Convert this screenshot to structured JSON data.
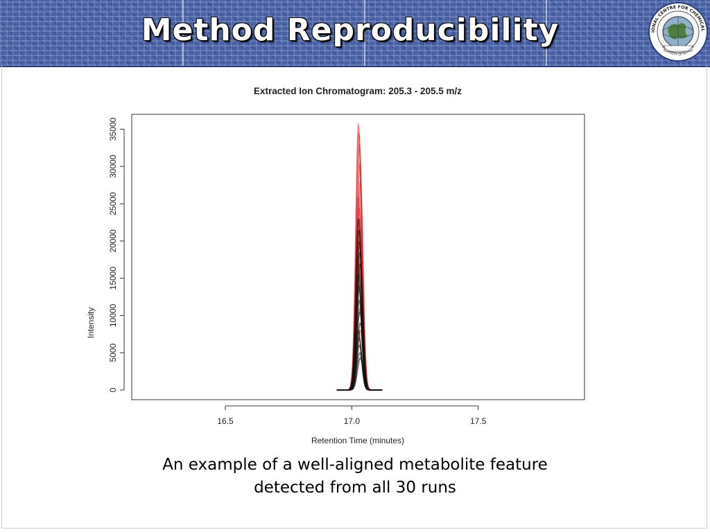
{
  "slide": {
    "title": "Method Reproducibility",
    "caption_line1": "An example of a well-aligned metabolite feature",
    "caption_line2": "detected from all 30 runs",
    "logo": {
      "icon": "globe-seal-icon",
      "text_top": "INTERNATIONAL CENTRE FOR CHEMICAL SCIENCES",
      "text_bottom": "UNIVERSITY OF KARACHI"
    }
  },
  "colors": {
    "header": "#4a63a8",
    "red_trace": "#e31b1b",
    "black_trace": "#111111"
  },
  "chart_data": {
    "type": "line",
    "title": "Extracted Ion Chromatogram: 205.3 - 205.5 m/z",
    "xlabel": "Retention Time (minutes)",
    "ylabel": "Intensity",
    "xlim": [
      16.13,
      17.92
    ],
    "ylim": [
      -1300,
      37000
    ],
    "xticks": [
      16.5,
      17.0,
      17.5
    ],
    "xtick_labels": [
      "16.5",
      "17.0",
      "17.5"
    ],
    "yticks": [
      0,
      5000,
      10000,
      15000,
      20000,
      25000,
      30000,
      35000
    ],
    "ytick_labels": [
      "0",
      "5000",
      "10000",
      "15000",
      "20000",
      "25000",
      "30000",
      "35000"
    ],
    "peak_center_minutes": 17.03,
    "series": [
      {
        "color": "red",
        "peak_heights": [
          35700,
          34500,
          33000,
          30500,
          28000,
          26000,
          24500,
          23000,
          21500,
          20000,
          18000,
          16000,
          13500,
          11000,
          8000
        ]
      },
      {
        "color": "black",
        "peak_heights": [
          23000,
          21500,
          20000,
          18500,
          17000,
          15500,
          14000,
          12000,
          10500,
          9000,
          8000,
          7000,
          6000,
          5000,
          4300
        ]
      }
    ],
    "grid": false,
    "legend": "none"
  }
}
